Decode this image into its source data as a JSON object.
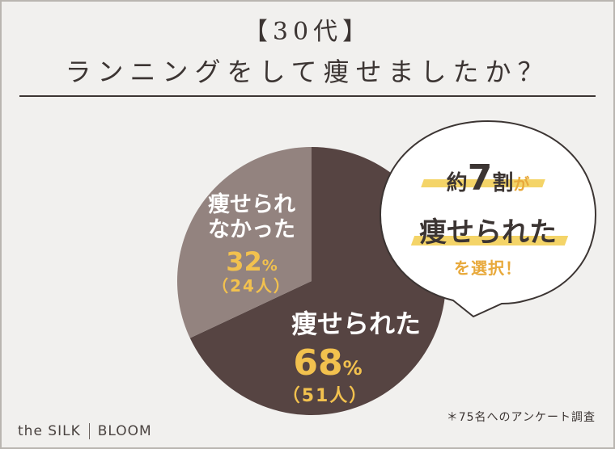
{
  "title_line1": "【30代】",
  "title_line2": "ランニングをして痩せましたか？",
  "chart_data": {
    "type": "pie",
    "categories": [
      "痩せられた",
      "痩せられなかった"
    ],
    "values": [
      68,
      32
    ],
    "counts": [
      "（51人）",
      "（24人）"
    ],
    "slices": [
      {
        "label": "痩せられた",
        "percent": "68",
        "count": "（51人）",
        "color": "#564442"
      },
      {
        "label_line1": "痩せられ",
        "label_line2": "なかった",
        "percent": "32",
        "count": "（24人）",
        "color": "#93837f"
      }
    ],
    "percent_unit": "%"
  },
  "callout": {
    "line1_pre": "約",
    "line1_num": "7",
    "line1_post": "割",
    "line1_tail": "が",
    "line2": "痩せられた",
    "line3": "を選択！"
  },
  "footnote": "＊75名へのアンケート調査",
  "logo": {
    "left": "the SILK",
    "right": "BLOOM"
  },
  "colors": {
    "accent_yellow": "#f2c14e",
    "accent_orange": "#e8a93b",
    "dark_slice": "#564442",
    "light_slice": "#93837f",
    "background": "#f1f0ee"
  }
}
